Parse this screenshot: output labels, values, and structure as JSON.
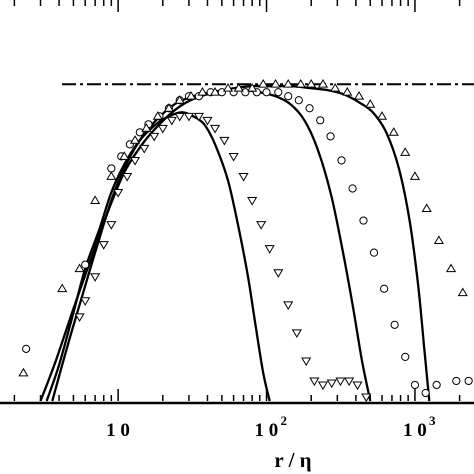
{
  "chart_data": {
    "type": "scatter",
    "title": "",
    "xlabel": "r / η",
    "ylabel": "",
    "xscale": "log",
    "xlim": [
      1.6,
      2500
    ],
    "ylim": [
      0,
      1
    ],
    "x_ticks": [
      {
        "value": 10,
        "base": "1 0",
        "exp": ""
      },
      {
        "value": 100,
        "base": "1 0",
        "exp": "2"
      },
      {
        "value": 1000,
        "base": "1 0",
        "exp": "3"
      }
    ],
    "reference_level": {
      "y": 0.79,
      "style": "dash-dot"
    },
    "series": [
      {
        "marker": "triangle-down",
        "x": [
          5.5,
          6.0,
          7.0,
          8.0,
          9.0,
          10.0,
          11.5,
          13.0,
          15.0,
          17.5,
          20.0,
          23.0,
          26.0,
          30.0,
          35.0,
          40.0,
          45.0,
          52.0,
          60.0,
          70.0,
          80.0,
          92.0,
          105.0,
          120.0,
          140.0,
          160.0,
          185.0,
          210.0,
          240.0,
          275.0,
          315.0,
          360.0,
          410.0,
          470.0
        ],
        "y": [
          0.21,
          0.25,
          0.31,
          0.39,
          0.44,
          0.52,
          0.56,
          0.6,
          0.63,
          0.66,
          0.68,
          0.7,
          0.71,
          0.71,
          0.71,
          0.7,
          0.68,
          0.65,
          0.61,
          0.56,
          0.5,
          0.44,
          0.38,
          0.32,
          0.24,
          0.17,
          0.1,
          0.05,
          0.04,
          0.045,
          0.05,
          0.05,
          0.04,
          0.01
        ]
      },
      {
        "marker": "circle",
        "x": [
          2.4,
          6.0,
          9.0,
          10.5,
          12.0,
          14.0,
          16.0,
          19.0,
          22.0,
          26.0,
          30.0,
          35.0,
          42.0,
          50.0,
          60.0,
          72.0,
          86.0,
          100.0,
          120.0,
          140.0,
          165.0,
          195.0,
          230.0,
          270.0,
          320.0,
          380.0,
          450.0,
          530.0,
          620.0,
          730.0,
          860.0,
          1000.0,
          1180.0,
          1400.0,
          1900.0,
          2300.0
        ],
        "y": [
          0.13,
          0.34,
          0.58,
          0.61,
          0.64,
          0.67,
          0.69,
          0.71,
          0.73,
          0.75,
          0.76,
          0.76,
          0.77,
          0.77,
          0.77,
          0.77,
          0.77,
          0.77,
          0.77,
          0.76,
          0.75,
          0.73,
          0.7,
          0.66,
          0.6,
          0.53,
          0.45,
          0.37,
          0.28,
          0.19,
          0.11,
          0.04,
          0.02,
          0.04,
          0.05,
          0.05
        ]
      },
      {
        "marker": "triangle-up",
        "x": [
          2.3,
          4.2,
          5.5,
          7.0,
          9.0,
          11.0,
          13.0,
          15.5,
          18.5,
          22.0,
          26.0,
          31.0,
          37.0,
          45.0,
          55.0,
          65.0,
          80.0,
          95.0,
          115.0,
          140.0,
          170.0,
          200.0,
          240.0,
          290.0,
          350.0,
          420.0,
          500.0,
          600.0,
          720.0,
          860.0,
          1000.0,
          1200.0,
          1450.0,
          1750.0,
          2100.0
        ],
        "y": [
          0.07,
          0.28,
          0.33,
          0.5,
          0.56,
          0.61,
          0.65,
          0.68,
          0.71,
          0.73,
          0.75,
          0.76,
          0.77,
          0.77,
          0.78,
          0.78,
          0.78,
          0.79,
          0.79,
          0.79,
          0.79,
          0.79,
          0.79,
          0.78,
          0.77,
          0.76,
          0.74,
          0.71,
          0.67,
          0.62,
          0.56,
          0.48,
          0.4,
          0.33,
          0.27
        ]
      }
    ],
    "fit_curves": [
      {
        "x": [
          3.3,
          4.0,
          5.0,
          6.0,
          7.5,
          9.0,
          11.0,
          14.0,
          18.0,
          22.0,
          27.0,
          32.0,
          38.0,
          45.0,
          55.0,
          65.0,
          75.0,
          85.0,
          95.0,
          105.0
        ],
        "y": [
          0.0,
          0.09,
          0.22,
          0.33,
          0.43,
          0.52,
          0.59,
          0.65,
          0.69,
          0.71,
          0.72,
          0.71,
          0.69,
          0.64,
          0.55,
          0.43,
          0.31,
          0.18,
          0.07,
          0.0
        ]
      },
      {
        "x": [
          3.6,
          4.5,
          5.5,
          7.0,
          9.0,
          11.0,
          14.0,
          18.0,
          24.0,
          32.0,
          42.0,
          55.0,
          70.0,
          90.0,
          115.0,
          145.0,
          180.0,
          220.0,
          270.0,
          320.0,
          380.0,
          440.0,
          500.0
        ],
        "y": [
          0.0,
          0.13,
          0.24,
          0.37,
          0.5,
          0.58,
          0.65,
          0.7,
          0.74,
          0.76,
          0.77,
          0.775,
          0.775,
          0.77,
          0.76,
          0.74,
          0.7,
          0.63,
          0.52,
          0.39,
          0.24,
          0.1,
          0.0
        ]
      },
      {
        "x": [
          3.0,
          3.8,
          5.0,
          6.5,
          8.5,
          11.0,
          14.5,
          19.0,
          25.0,
          33.0,
          45.0,
          60.0,
          80.0,
          110.0,
          150.0,
          200.0,
          260.0,
          330.0,
          420.0,
          520.0,
          640.0,
          780.0,
          920.0,
          1050.0,
          1150.0,
          1250.0
        ],
        "y": [
          0.0,
          0.1,
          0.23,
          0.35,
          0.47,
          0.57,
          0.64,
          0.69,
          0.73,
          0.755,
          0.77,
          0.78,
          0.785,
          0.785,
          0.785,
          0.78,
          0.775,
          0.765,
          0.745,
          0.72,
          0.67,
          0.58,
          0.45,
          0.29,
          0.14,
          0.0
        ]
      }
    ]
  }
}
